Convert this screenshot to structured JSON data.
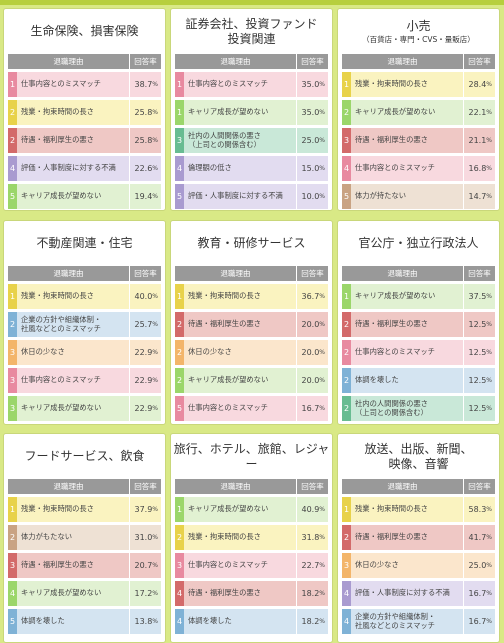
{
  "header_label": "退職理由",
  "rate_label": "回答率",
  "percent_sign": "%",
  "colors": {
    "background": "#d9e986",
    "pink": "#e88aa0",
    "yellow": "#e8d24a",
    "red": "#d36a6a",
    "violet": "#a99bd0",
    "green": "#9bd66a",
    "teal": "#68bc92",
    "blue": "#7fb2d6",
    "orange": "#f3b56a",
    "brown": "#c9a383"
  },
  "panels": [
    {
      "title1": "生命保険、損害保険",
      "title2": "",
      "subtitle": "",
      "rows": [
        {
          "rank": "1",
          "reason": "仕事内容とのミスマッチ",
          "rate": "38.7",
          "color": "pink"
        },
        {
          "rank": "2",
          "reason": "残業・拘束時間の長さ",
          "rate": "25.8",
          "color": "yellow"
        },
        {
          "rank": "2",
          "reason": "待遇・福利厚生の悪さ",
          "rate": "25.8",
          "color": "red"
        },
        {
          "rank": "4",
          "reason": "評価・人事制度に対する不満",
          "rate": "22.6",
          "color": "violet"
        },
        {
          "rank": "5",
          "reason": "キャリア成長が望めない",
          "rate": "19.4",
          "color": "green"
        }
      ]
    },
    {
      "title1": "証券会社、投資ファンド",
      "title2": "投資関連",
      "subtitle": "",
      "rows": [
        {
          "rank": "1",
          "reason": "仕事内容とのミスマッチ",
          "rate": "35.0",
          "color": "pink"
        },
        {
          "rank": "1",
          "reason": "キャリア成長が望めない",
          "rate": "35.0",
          "color": "green"
        },
        {
          "rank": "3",
          "reason": "社内の人間関係の悪さ\n（上司との関係含む）",
          "rate": "25.0",
          "color": "teal"
        },
        {
          "rank": "4",
          "reason": "倫理観の低さ",
          "rate": "15.0",
          "color": "violet"
        },
        {
          "rank": "5",
          "reason": "評価・人事制度に対する不満",
          "rate": "10.0",
          "color": "violet"
        }
      ]
    },
    {
      "title1": "小売",
      "title2": "",
      "subtitle": "（百貨店・専門・CVS・量販店）",
      "rows": [
        {
          "rank": "1",
          "reason": "残業・拘束時間の長さ",
          "rate": "28.4",
          "color": "yellow"
        },
        {
          "rank": "2",
          "reason": "キャリア成長が望めない",
          "rate": "22.1",
          "color": "green"
        },
        {
          "rank": "3",
          "reason": "待遇・福利厚生の悪さ",
          "rate": "21.1",
          "color": "red"
        },
        {
          "rank": "4",
          "reason": "仕事内容とのミスマッチ",
          "rate": "16.8",
          "color": "pink"
        },
        {
          "rank": "5",
          "reason": "体力が持たない",
          "rate": "14.7",
          "color": "brown"
        }
      ]
    },
    {
      "title1": "不動産関連・住宅",
      "title2": "",
      "subtitle": "",
      "rows": [
        {
          "rank": "1",
          "reason": "残業・拘束時間の長さ",
          "rate": "40.0",
          "color": "yellow"
        },
        {
          "rank": "2",
          "reason": "企業の方針や組織体制・\n社風などとのミスマッチ",
          "rate": "25.7",
          "color": "blue"
        },
        {
          "rank": "3",
          "reason": "休日の少なさ",
          "rate": "22.9",
          "color": "orange"
        },
        {
          "rank": "3",
          "reason": "仕事内容とのミスマッチ",
          "rate": "22.9",
          "color": "pink"
        },
        {
          "rank": "3",
          "reason": "キャリア成長が望めない",
          "rate": "22.9",
          "color": "green"
        }
      ]
    },
    {
      "title1": "教育・研修サービス",
      "title2": "",
      "subtitle": "",
      "rows": [
        {
          "rank": "1",
          "reason": "残業・拘束時間の長さ",
          "rate": "36.7",
          "color": "yellow"
        },
        {
          "rank": "2",
          "reason": "待遇・福利厚生の悪さ",
          "rate": "20.0",
          "color": "red"
        },
        {
          "rank": "2",
          "reason": "休日の少なさ",
          "rate": "20.0",
          "color": "orange"
        },
        {
          "rank": "2",
          "reason": "キャリア成長が望めない",
          "rate": "20.0",
          "color": "green"
        },
        {
          "rank": "5",
          "reason": "仕事内容とのミスマッチ",
          "rate": "16.7",
          "color": "pink"
        }
      ]
    },
    {
      "title1": "官公庁・独立行政法人",
      "title2": "",
      "subtitle": "",
      "rows": [
        {
          "rank": "1",
          "reason": "キャリア成長が望めない",
          "rate": "37.5",
          "color": "green"
        },
        {
          "rank": "2",
          "reason": "待遇・福利厚生の悪さ",
          "rate": "12.5",
          "color": "red"
        },
        {
          "rank": "2",
          "reason": "仕事内容とのミスマッチ",
          "rate": "12.5",
          "color": "pink"
        },
        {
          "rank": "2",
          "reason": "体調を壊した",
          "rate": "12.5",
          "color": "blue"
        },
        {
          "rank": "2",
          "reason": "社内の人間関係の悪さ\n（上司との関係含む）",
          "rate": "12.5",
          "color": "teal"
        }
      ]
    },
    {
      "title1": "フードサービス、飲食",
      "title2": "",
      "subtitle": "",
      "rows": [
        {
          "rank": "1",
          "reason": "残業・拘束時間の長さ",
          "rate": "37.9",
          "color": "yellow"
        },
        {
          "rank": "2",
          "reason": "体力がもたない",
          "rate": "31.0",
          "color": "brown"
        },
        {
          "rank": "3",
          "reason": "待遇・福利厚生の悪さ",
          "rate": "20.7",
          "color": "red"
        },
        {
          "rank": "4",
          "reason": "キャリア成長が望めない",
          "rate": "17.2",
          "color": "green"
        },
        {
          "rank": "5",
          "reason": "体調を壊した",
          "rate": "13.8",
          "color": "blue"
        }
      ]
    },
    {
      "title1": "旅行、ホテル、旅館、レジャー",
      "title2": "",
      "subtitle": "",
      "rows": [
        {
          "rank": "1",
          "reason": "キャリア成長が望めない",
          "rate": "40.9",
          "color": "green"
        },
        {
          "rank": "2",
          "reason": "残業・拘束時間の長さ",
          "rate": "31.8",
          "color": "yellow"
        },
        {
          "rank": "3",
          "reason": "仕事内容とのミスマッチ",
          "rate": "22.7",
          "color": "pink"
        },
        {
          "rank": "4",
          "reason": "待遇・福利厚生の悪さ",
          "rate": "18.2",
          "color": "red"
        },
        {
          "rank": "4",
          "reason": "体調を壊した",
          "rate": "18.2",
          "color": "blue"
        }
      ]
    },
    {
      "title1": "放送、出版、新聞、",
      "title2": "映像、音響",
      "subtitle": "",
      "rows": [
        {
          "rank": "1",
          "reason": "残業・拘束時間の長さ",
          "rate": "58.3",
          "color": "yellow"
        },
        {
          "rank": "2",
          "reason": "待遇・福利厚生の悪さ",
          "rate": "41.7",
          "color": "red"
        },
        {
          "rank": "3",
          "reason": "休日の少なさ",
          "rate": "25.0",
          "color": "orange"
        },
        {
          "rank": "4",
          "reason": "評価・人事制度に対する不満",
          "rate": "16.7",
          "color": "violet"
        },
        {
          "rank": "4",
          "reason": "企業の方針や組織体制・\n社風などとのミスマッチ",
          "rate": "16.7",
          "color": "blue"
        }
      ]
    }
  ]
}
